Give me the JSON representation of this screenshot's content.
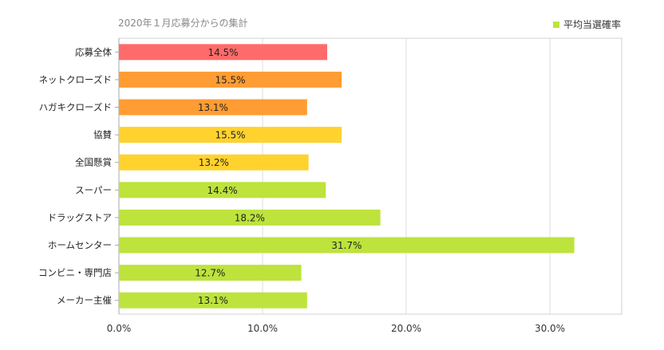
{
  "chart_data": {
    "type": "bar",
    "orientation": "horizontal",
    "subtitle": "2020年１月応募分からの集計",
    "categories": [
      "応募全体",
      "ネットクローズド",
      "ハガキクローズド",
      "協賛",
      "全国懸賞",
      "スーパー",
      "ドラッグストア",
      "ホームセンター",
      "コンビニ・専門店",
      "メーカー主催"
    ],
    "series": [
      {
        "name": "平均当選確率",
        "values": [
          14.5,
          15.5,
          13.1,
          15.5,
          13.2,
          14.4,
          18.2,
          31.7,
          12.7,
          13.1
        ],
        "data_labels": [
          "14.5%",
          "15.5%",
          "13.1%",
          "15.5%",
          "13.2%",
          "14.4%",
          "18.2%",
          "31.7%",
          "12.7%",
          "13.1%"
        ]
      }
    ],
    "bar_colors": [
      "#ff6b6b",
      "#ff9c33",
      "#ff9c33",
      "#ffd22e",
      "#ffd22e",
      "#bde33c",
      "#bde33c",
      "#bde33c",
      "#bde33c",
      "#bde33c"
    ],
    "legend_color": "#bde33c",
    "x_ticks": [
      0,
      10,
      20,
      30
    ],
    "x_tick_labels": [
      "0.0%",
      "10.0%",
      "20.0%",
      "30.0%"
    ],
    "xlim": [
      0,
      35
    ],
    "grid": "vertical",
    "legend_position": "top-right"
  }
}
